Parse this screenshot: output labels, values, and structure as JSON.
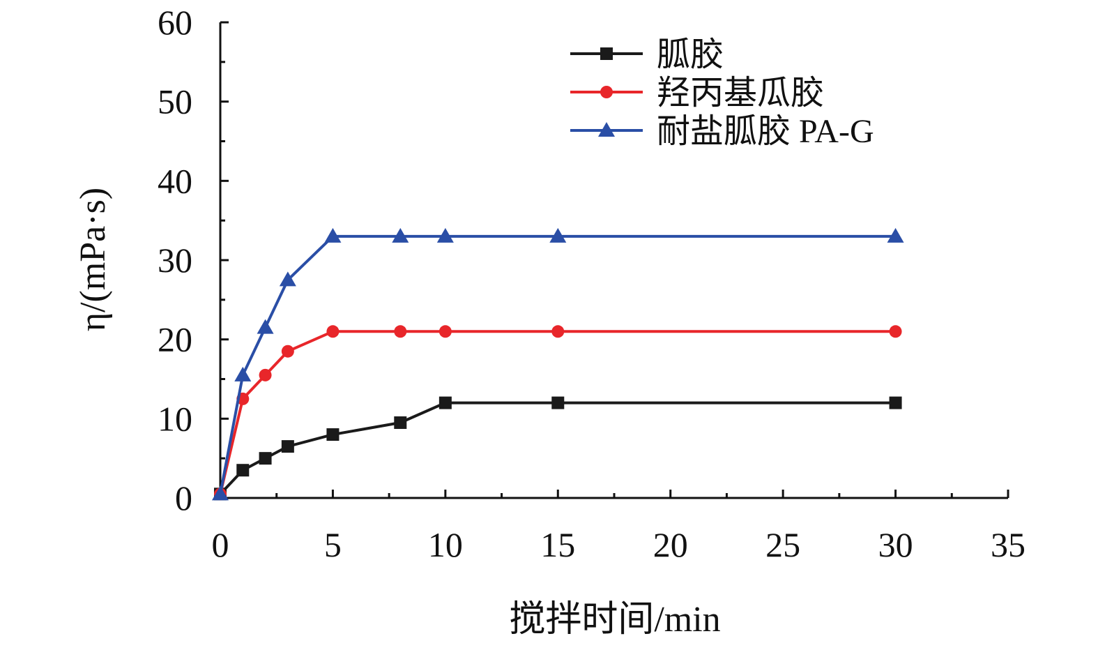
{
  "chart_data": {
    "type": "line",
    "title": "",
    "xlabel": "搅拌时间/min",
    "ylabel": "η/(mPa·s)",
    "xlim": [
      0,
      35
    ],
    "ylim": [
      0,
      60
    ],
    "x_ticks": [
      "0",
      "5",
      "10",
      "15",
      "20",
      "25",
      "30",
      "35"
    ],
    "y_ticks": [
      "0",
      "10",
      "20",
      "30",
      "40",
      "50",
      "60"
    ],
    "grid": false,
    "legend_position": "top-right",
    "series": [
      {
        "name": "胍胶",
        "color": "#1a1a1a",
        "marker": "square",
        "points": [
          [
            0,
            0.5
          ],
          [
            1,
            3.5
          ],
          [
            2,
            5
          ],
          [
            3,
            6.5
          ],
          [
            5,
            8
          ],
          [
            8,
            9.5
          ],
          [
            10,
            12
          ],
          [
            15,
            12
          ],
          [
            30,
            12
          ]
        ]
      },
      {
        "name": "羟丙基瓜胶",
        "color": "#e8262a",
        "marker": "circle",
        "points": [
          [
            0,
            0.5
          ],
          [
            1,
            12.5
          ],
          [
            2,
            15.5
          ],
          [
            3,
            18.5
          ],
          [
            5,
            21
          ],
          [
            8,
            21
          ],
          [
            10,
            21
          ],
          [
            15,
            21
          ],
          [
            30,
            21
          ]
        ]
      },
      {
        "name": "耐盐胍胶 PA-G",
        "color": "#2a4ea6",
        "marker": "triangle",
        "points": [
          [
            0,
            0.5
          ],
          [
            1,
            15.5
          ],
          [
            2,
            21.5
          ],
          [
            3,
            27.5
          ],
          [
            5,
            33
          ],
          [
            8,
            33
          ],
          [
            10,
            33
          ],
          [
            15,
            33
          ],
          [
            30,
            33
          ]
        ]
      }
    ]
  }
}
